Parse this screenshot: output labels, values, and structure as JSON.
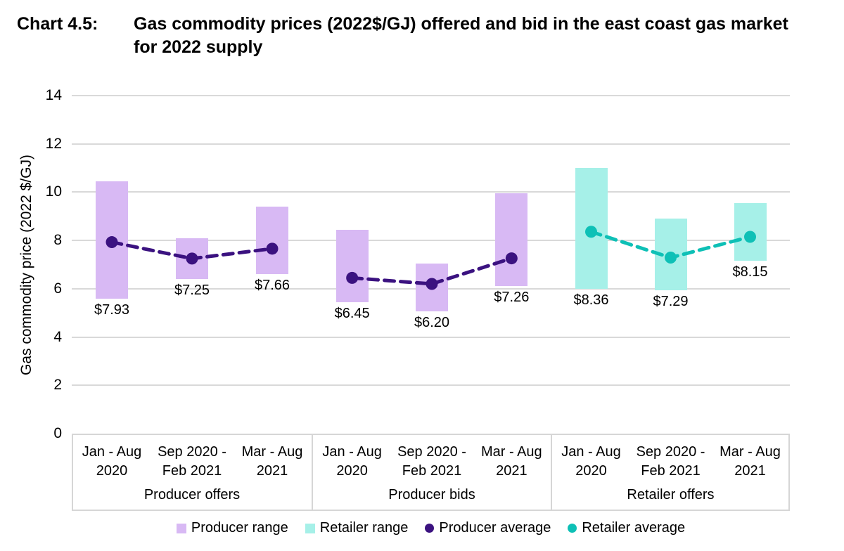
{
  "header": {
    "label": "Chart 4.5:",
    "title": "Gas commodity prices (2022$/GJ) offered and bid in the east coast gas market for 2022 supply"
  },
  "chart_data": {
    "type": "bar",
    "subtype": "floating range bars with average point markers and dashed connector lines",
    "title": "Gas commodity prices (2022$/GJ) offered and bid in the east coast gas market for 2022 supply",
    "xlabel": "",
    "ylabel": "Gas commodity price (2022 $/GJ)",
    "ylim": [
      0,
      14
    ],
    "yticks": [
      0,
      2,
      4,
      6,
      8,
      10,
      12,
      14
    ],
    "grid": "horizontal",
    "legend_position": "bottom",
    "colors": {
      "producer_range": "#D8B9F4",
      "retailer_range": "#A6F0E8",
      "producer_average": "#3B1280",
      "retailer_average": "#0EC0B6",
      "gridline": "#D9D9D9",
      "axis_box": "#D6D6D6"
    },
    "groups": [
      {
        "label": "Producer offers",
        "range_series": "producer_range",
        "average_series": "producer_average",
        "points": [
          {
            "period": "Jan - Aug\n2020",
            "range_low": 5.6,
            "range_high": 10.45,
            "average": 7.93,
            "average_label": "$7.93"
          },
          {
            "period": "Sep 2020 -\nFeb 2021",
            "range_low": 6.4,
            "range_high": 8.1,
            "average": 7.25,
            "average_label": "$7.25"
          },
          {
            "period": "Mar - Aug\n2021",
            "range_low": 6.6,
            "range_high": 9.4,
            "average": 7.66,
            "average_label": "$7.66"
          }
        ]
      },
      {
        "label": "Producer bids",
        "range_series": "producer_range",
        "average_series": "producer_average",
        "points": [
          {
            "period": "Jan - Aug\n2020",
            "range_low": 5.45,
            "range_high": 8.45,
            "average": 6.45,
            "average_label": "$6.45"
          },
          {
            "period": "Sep 2020 -\nFeb 2021",
            "range_low": 5.05,
            "range_high": 7.05,
            "average": 6.2,
            "average_label": "$6.20"
          },
          {
            "period": "Mar - Aug\n2021",
            "range_low": 6.1,
            "range_high": 9.95,
            "average": 7.26,
            "average_label": "$7.26"
          }
        ]
      },
      {
        "label": "Retailer offers",
        "range_series": "retailer_range",
        "average_series": "retailer_average",
        "points": [
          {
            "period": "Jan - Aug\n2020",
            "range_low": 6.0,
            "range_high": 11.0,
            "average": 8.36,
            "average_label": "$8.36"
          },
          {
            "period": "Sep 2020 -\nFeb 2021",
            "range_low": 5.95,
            "range_high": 8.9,
            "average": 7.29,
            "average_label": "$7.29"
          },
          {
            "period": "Mar - Aug\n2021",
            "range_low": 7.15,
            "range_high": 9.55,
            "average": 8.15,
            "average_label": "$8.15"
          }
        ]
      }
    ],
    "legend": [
      {
        "label": "Producer range",
        "marker": "square",
        "color_key": "producer_range"
      },
      {
        "label": "Retailer range",
        "marker": "square",
        "color_key": "retailer_range"
      },
      {
        "label": "Producer average",
        "marker": "circle",
        "color_key": "producer_average"
      },
      {
        "label": "Retailer average",
        "marker": "circle",
        "color_key": "retailer_average"
      }
    ]
  }
}
